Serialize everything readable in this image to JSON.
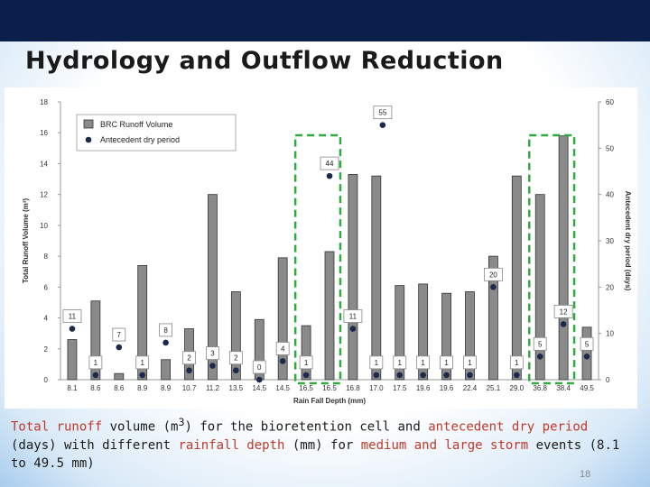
{
  "slide": {
    "title": "Hydrology and Outflow Reduction",
    "page_number": "18",
    "caption": {
      "p1": "Total runoff",
      "p2": " volume (m",
      "p3": "3",
      "p4": ") for the bioretention cell and ",
      "p5": "antecedent dry period",
      "p6": " (days) with different ",
      "p7": "rainfall depth",
      "p8": " (mm) for ",
      "p9": "medium and large storm",
      "p10": " events (8.1 to 49.5 mm)"
    }
  },
  "colors": {
    "bar_fill": "#8a8a8a",
    "dot_fill": "#1b2a4a",
    "highlight_box": "#2eaa3f",
    "caption_highlight": "#c0392b",
    "top_bar": "#0b1f4a"
  },
  "chart_data": {
    "type": "bar",
    "categories": [
      "8.1",
      "8.6",
      "8.6",
      "8.9",
      "8.9",
      "10.7",
      "11.2",
      "13.5",
      "14.5",
      "14.5",
      "16.5",
      "16.5",
      "16.8",
      "17.0",
      "17.5",
      "19.6",
      "19.6",
      "22.4",
      "25.1",
      "29.0",
      "36.8",
      "38.4",
      "49.5"
    ],
    "xlabel": "Rain Fall Depth (mm)",
    "ylabel": "Total Runoff Volume (m³)",
    "y2label": "Antecedent dry period (days)",
    "ylim": [
      0,
      18
    ],
    "y2lim": [
      0,
      60
    ],
    "yticks": [
      "0",
      "2",
      "4",
      "6",
      "8",
      "10",
      "12",
      "14",
      "16",
      "18"
    ],
    "y2ticks": [
      "0",
      "10",
      "20",
      "30",
      "40",
      "50",
      "60"
    ],
    "grid": false,
    "legend_position": "top-left",
    "series": [
      {
        "name": "BRC Runoff Volume",
        "type": "bar",
        "axis": "left",
        "values": [
          2.6,
          5.1,
          0.4,
          7.4,
          1.3,
          3.3,
          12.0,
          5.7,
          3.9,
          7.9,
          3.5,
          8.3,
          13.3,
          13.2,
          6.1,
          6.2,
          5.6,
          5.7,
          8.0,
          13.2,
          12.0,
          15.8,
          3.4
        ]
      },
      {
        "name": "Antecedent dry period",
        "type": "scatter",
        "axis": "right",
        "values": [
          11,
          1,
          7,
          1,
          8,
          2,
          3,
          2,
          0,
          4,
          1,
          44,
          11,
          1,
          1,
          1,
          1,
          1,
          20,
          1,
          5,
          12,
          5
        ],
        "labels": [
          "11",
          "1",
          "7",
          "1",
          "8",
          "2",
          "3",
          "2",
          "0",
          "4",
          "1",
          "44",
          "11",
          "1",
          "1",
          "1",
          "1",
          "1",
          "20",
          "1",
          "5",
          "12",
          "5"
        ]
      }
    ],
    "annotations": [
      {
        "label": "55",
        "y2": 55,
        "position": "between 16.8 and 17.0"
      }
    ],
    "highlight_boxes": [
      {
        "from_category": 10,
        "to_category": 11,
        "style": "dashed green"
      },
      {
        "from_category": 20,
        "to_category": 21,
        "style": "dashed green"
      }
    ]
  }
}
